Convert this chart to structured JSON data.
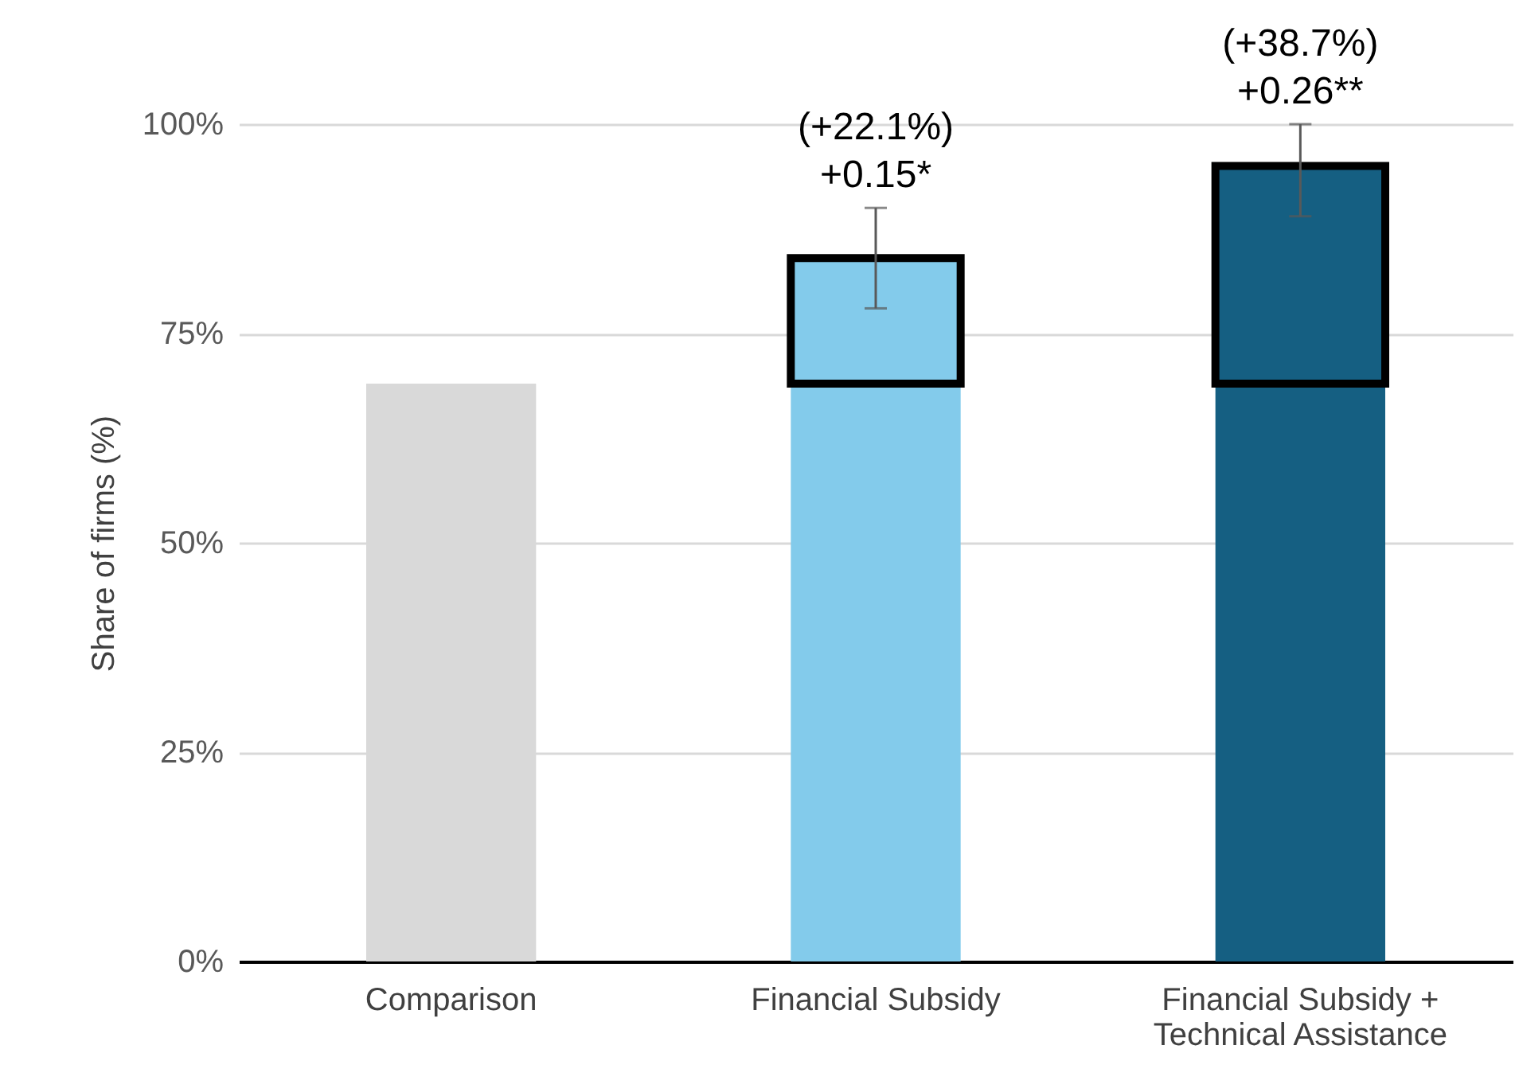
{
  "chart_data": {
    "type": "bar",
    "stacked": true,
    "ylabel": "Share of firms (%)",
    "categories": [
      "Comparison",
      "Financial Subsidy",
      "Financial Subsidy + Technical Assistance"
    ],
    "series": [
      {
        "colors": [
          "#d9d9d9",
          "#83cbeb",
          "#155f82"
        ],
        "values": [
          69,
          69,
          69
        ]
      },
      {
        "colors": [
          null,
          "#83cbeb",
          "#155f82"
        ],
        "values": [
          null,
          15,
          26
        ],
        "errors": [
          null,
          [
            78,
            90
          ],
          [
            89,
            100
          ]
        ]
      }
    ],
    "ylim": [
      0,
      100
    ],
    "yticks": [
      {
        "value": 0,
        "label": "0%"
      },
      {
        "value": 25,
        "label": "25%"
      },
      {
        "value": 50,
        "label": "50%"
      },
      {
        "value": 75,
        "label": "75%"
      },
      {
        "value": 100,
        "label": "100%"
      }
    ],
    "grid": "y",
    "annotations": [
      {
        "text": "(+22.1%)\n+0.15*",
        "x": "Financial Subsidy",
        "y": 90
      },
      {
        "text": "(+38.7%)\n+0.26**",
        "x": "Financial Subsidy + Technical Assistance",
        "y": 100
      }
    ]
  }
}
